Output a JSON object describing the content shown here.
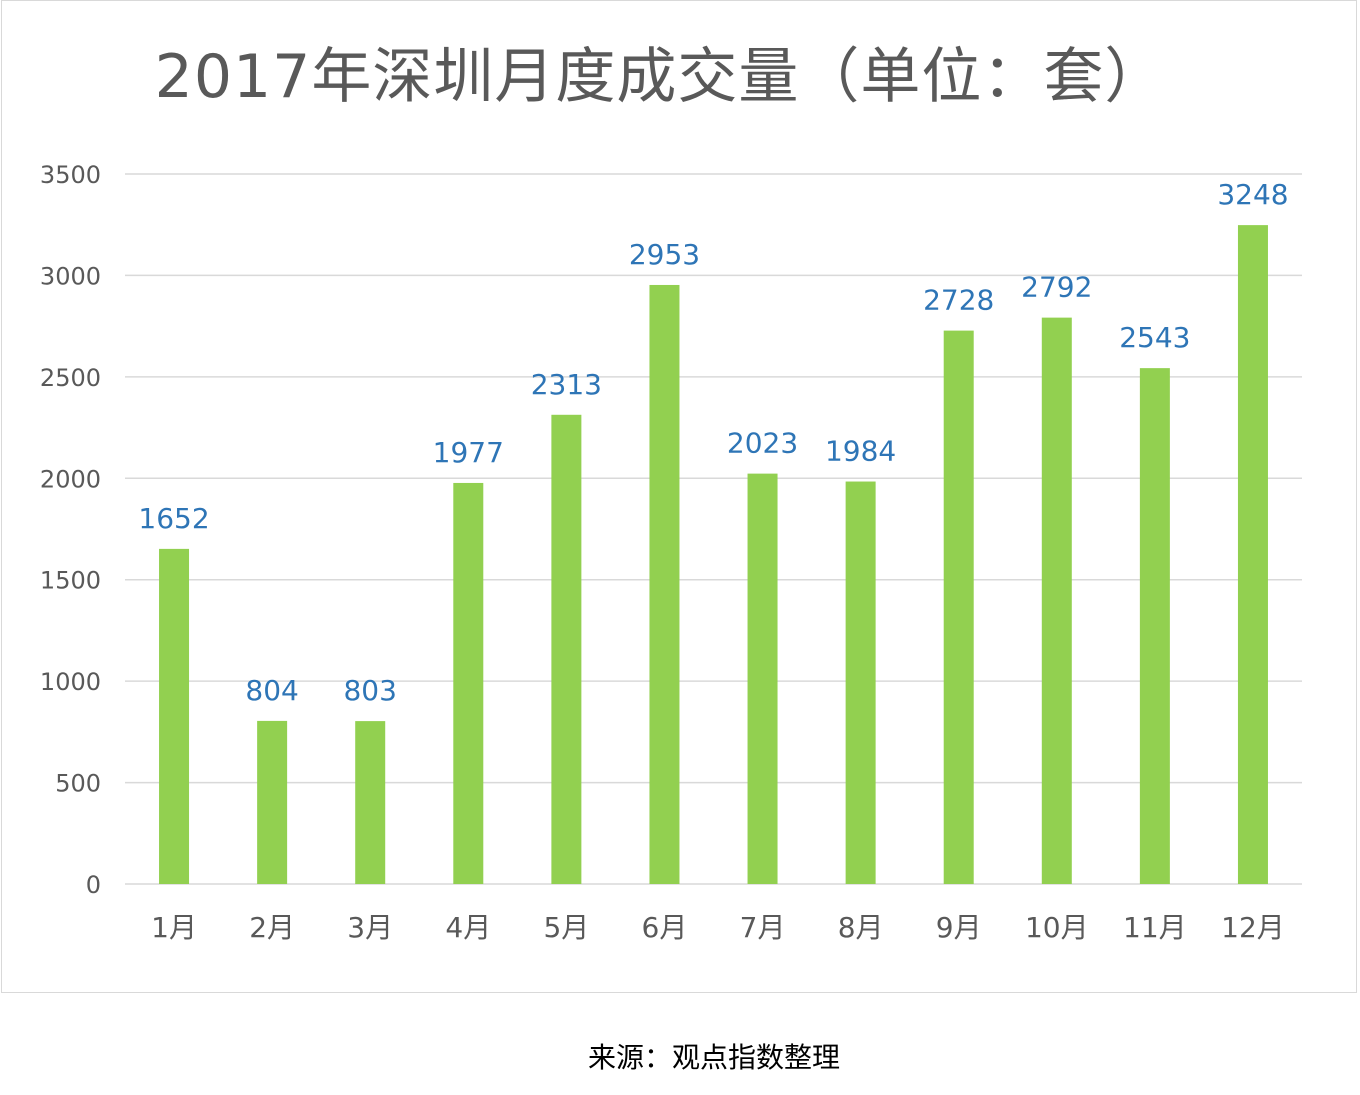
{
  "chart_data": {
    "type": "bar",
    "title": "2017年深圳月度成交量（单位：套）",
    "categories": [
      "1月",
      "2月",
      "3月",
      "4月",
      "5月",
      "6月",
      "7月",
      "8月",
      "9月",
      "10月",
      "11月",
      "12月"
    ],
    "values": [
      1652,
      804,
      803,
      1977,
      2313,
      2953,
      2023,
      1984,
      2728,
      2792,
      2543,
      3248
    ],
    "data_labels": [
      "1652",
      "804",
      "803",
      "1977",
      "2313",
      "2953",
      "2023",
      "1984",
      "2728",
      "2792",
      "2543",
      "3248"
    ],
    "y_ticks": [
      "0",
      "500",
      "1000",
      "1500",
      "2000",
      "2500",
      "3000",
      "3500"
    ],
    "xlabel": "",
    "ylabel": "",
    "ylim": [
      0,
      3500
    ],
    "grid": true,
    "legend": "none",
    "colors": {
      "bar": "#92d050",
      "data_label": "#2e75b6",
      "gridline": "#d9d9d9",
      "axis_text": "#595959",
      "title": "#595959"
    }
  },
  "source_note": "来源：观点指数整理"
}
